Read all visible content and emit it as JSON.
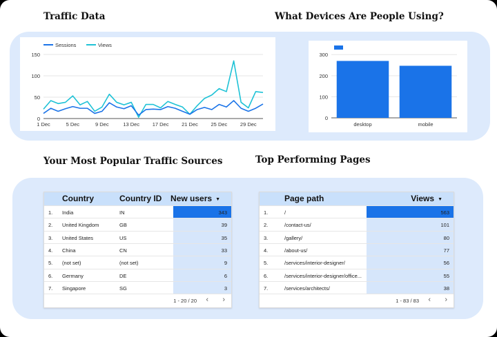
{
  "sections": {
    "traffic_title": "Traffic Data",
    "devices_title": "What Devices Are People Using?",
    "sources_title": "Your Most Popular Traffic Sources",
    "pages_title": "Top Performing Pages"
  },
  "colors": {
    "panel_bg": "#ddeafc",
    "sessions": "#1a73e8",
    "views": "#1ec2d6",
    "bar": "#1a73e8",
    "header_bg": "#c9e0fb",
    "cell_bar_light": "#d6e6fb",
    "cell_bar_strong": "#1a73e8"
  },
  "chart_data": [
    {
      "type": "line",
      "x": [
        "1 Dec",
        "2 Dec",
        "3 Dec",
        "4 Dec",
        "5 Dec",
        "6 Dec",
        "7 Dec",
        "8 Dec",
        "9 Dec",
        "10 Dec",
        "11 Dec",
        "12 Dec",
        "13 Dec",
        "14 Dec",
        "15 Dec",
        "16 Dec",
        "17 Dec",
        "18 Dec",
        "19 Dec",
        "20 Dec",
        "21 Dec",
        "22 Dec",
        "23 Dec",
        "24 Dec",
        "25 Dec",
        "26 Dec",
        "27 Dec",
        "28 Dec",
        "29 Dec",
        "30 Dec",
        "31 Dec"
      ],
      "xticks": [
        "1 Dec",
        "5 Dec",
        "9 Dec",
        "13 Dec",
        "17 Dec",
        "21 Dec",
        "25 Dec",
        "29 Dec"
      ],
      "yticks": [
        0,
        50,
        100,
        150
      ],
      "ylim": [
        0,
        150
      ],
      "grid": true,
      "legend": "top-left",
      "series": [
        {
          "name": "Sessions",
          "values": [
            12,
            24,
            17,
            23,
            28,
            24,
            24,
            12,
            17,
            37,
            27,
            23,
            30,
            8,
            21,
            22,
            21,
            28,
            24,
            17,
            10,
            21,
            26,
            21,
            33,
            27,
            42,
            24,
            17,
            24,
            34
          ]
        },
        {
          "name": "Views",
          "values": [
            22,
            42,
            35,
            38,
            53,
            32,
            40,
            17,
            27,
            57,
            38,
            32,
            38,
            3,
            33,
            33,
            25,
            40,
            33,
            27,
            10,
            30,
            47,
            55,
            70,
            63,
            135,
            38,
            25,
            63,
            61
          ]
        }
      ]
    },
    {
      "type": "bar",
      "categories": [
        "desktop",
        "mobile"
      ],
      "values": [
        270,
        247
      ],
      "yticks": [
        0,
        100,
        200,
        300
      ],
      "ylim": [
        0,
        340
      ],
      "grid": true,
      "legend": "top-left"
    }
  ],
  "countries": {
    "headers": {
      "country": "Country",
      "country_id": "Country ID",
      "new_users": "New users"
    },
    "max": 343,
    "rows": [
      {
        "n": "1.",
        "country": "India",
        "id": "IN",
        "value": 343
      },
      {
        "n": "2.",
        "country": "United Kingdom",
        "id": "GB",
        "value": 39
      },
      {
        "n": "3.",
        "country": "United States",
        "id": "US",
        "value": 35
      },
      {
        "n": "4.",
        "country": "China",
        "id": "CN",
        "value": 33
      },
      {
        "n": "5.",
        "country": "(not set)",
        "id": "(not set)",
        "value": 9
      },
      {
        "n": "6.",
        "country": "Germany",
        "id": "DE",
        "value": 6
      },
      {
        "n": "7.",
        "country": "Singapore",
        "id": "SG",
        "value": 3
      }
    ],
    "pagination": "1 - 20 / 20"
  },
  "pages": {
    "headers": {
      "path": "Page path",
      "views": "Views"
    },
    "max": 563,
    "rows": [
      {
        "n": "1.",
        "path": "/",
        "value": 563
      },
      {
        "n": "2.",
        "path": "/contact-us/",
        "value": 101
      },
      {
        "n": "3.",
        "path": "/gallery/",
        "value": 80
      },
      {
        "n": "4.",
        "path": "/about-us/",
        "value": 77
      },
      {
        "n": "5.",
        "path": "/services/interior-designer/",
        "value": 56
      },
      {
        "n": "6.",
        "path": "/services/interior-designer/office...",
        "value": 55
      },
      {
        "n": "7.",
        "path": "/services/architects/",
        "value": 38
      }
    ],
    "pagination": "1 - 83 / 83"
  },
  "icons": {
    "sort": "sort-desc-icon",
    "prev": "chevron-left-icon",
    "next": "chevron-right-icon"
  }
}
